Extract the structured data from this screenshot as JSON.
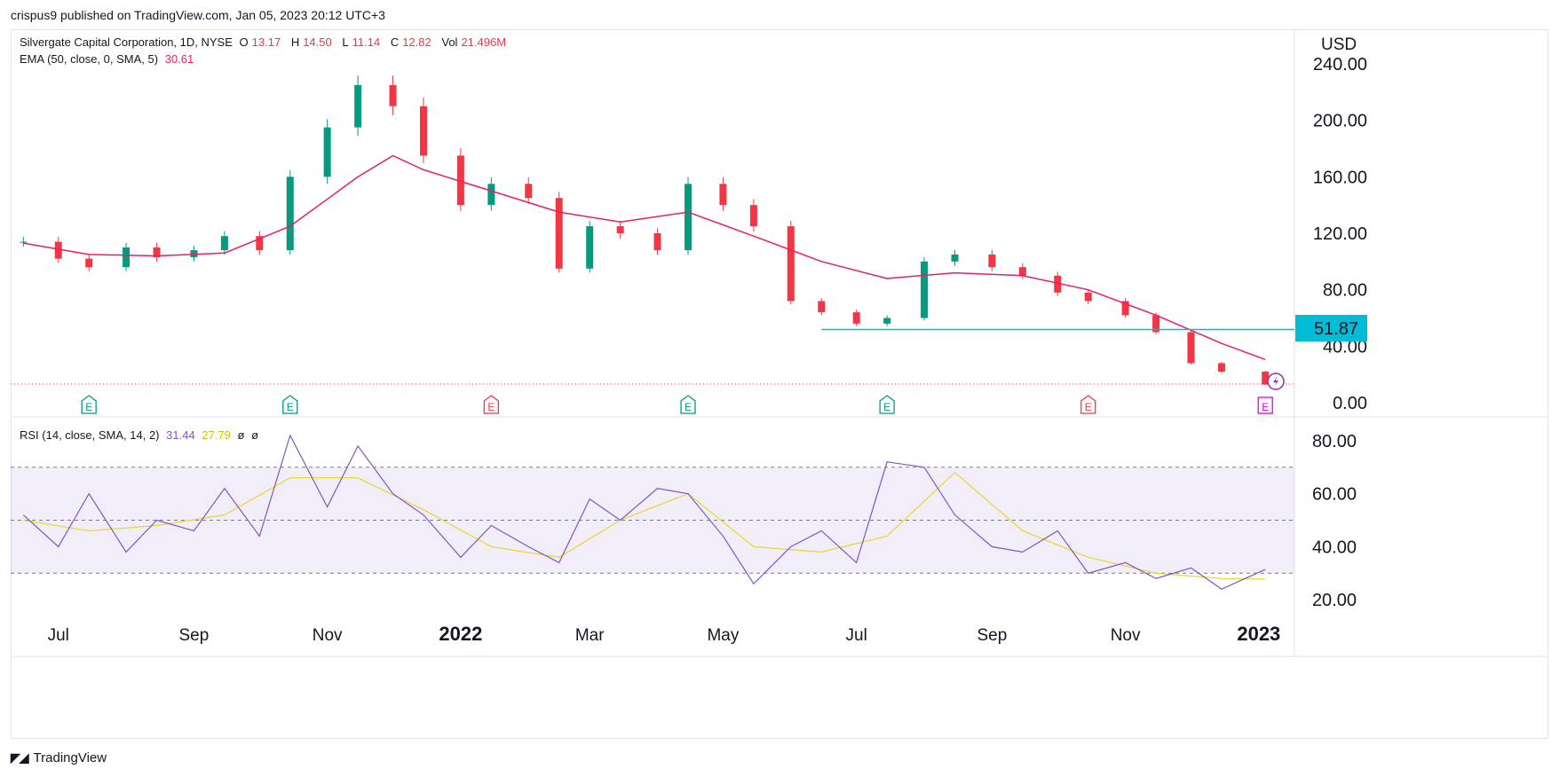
{
  "header": {
    "published": "crispus9 published on TradingView.com, Jan 05, 2023 20:12 UTC+3"
  },
  "legend": {
    "symbol": "Silvergate Capital Corporation, 1D, NYSE",
    "o_label": "O",
    "o": "13.17",
    "h_label": "H",
    "h": "14.50",
    "l_label": "L",
    "l": "11.14",
    "c_label": "C",
    "c": "12.82",
    "vol_label": "Vol",
    "vol": "21.496M",
    "ema_label": "EMA (50, close, 0, SMA, 5)",
    "ema": "30.61"
  },
  "rsi_legend": {
    "label": "RSI (14, close, SMA, 14, 2)",
    "rsi": "31.44",
    "rsi_ma": "27.79",
    "x1": "ø",
    "x2": "ø"
  },
  "currency": "USD",
  "price_label": "51.87",
  "footer": {
    "brand": "TradingView"
  },
  "colors": {
    "up": "#089981",
    "down": "#f23645",
    "ema": "#e91e63",
    "rsi": "#7e57c2",
    "rsi_ma": "#e6d82f",
    "level": "#00bcd4",
    "earnings_purple": "#d500f9"
  },
  "chart_data": [
    {
      "type": "candlestick",
      "series": [
        {
          "name": "Silvergate Capital Corporation",
          "type": "candlestick",
          "x": [
            "Jun 15 2021",
            "Jul 01 2021",
            "Jul 15 2021",
            "Aug 01 2021",
            "Aug 15 2021",
            "Sep 01 2021",
            "Sep 15 2021",
            "Oct 01 2021",
            "Oct 15 2021",
            "Nov 01 2021",
            "Nov 15 2021",
            "Dec 01 2021",
            "Dec 15 2021",
            "Jan 01 2022",
            "Jan 15 2022",
            "Feb 01 2022",
            "Feb 15 2022",
            "Mar 01 2022",
            "Mar 15 2022",
            "Apr 01 2022",
            "Apr 15 2022",
            "May 01 2022",
            "May 15 2022",
            "Jun 01 2022",
            "Jun 15 2022",
            "Jul 01 2022",
            "Jul 15 2022",
            "Aug 01 2022",
            "Aug 15 2022",
            "Sep 01 2022",
            "Sep 15 2022",
            "Oct 01 2022",
            "Oct 15 2022",
            "Nov 01 2022",
            "Nov 15 2022",
            "Dec 01 2022",
            "Dec 15 2022",
            "Jan 04 2023"
          ],
          "close": [
            114,
            102,
            96,
            110,
            103,
            108,
            118,
            108,
            160,
            195,
            225,
            210,
            175,
            140,
            155,
            145,
            95,
            125,
            120,
            108,
            155,
            140,
            125,
            72,
            64,
            56,
            60,
            100,
            105,
            96,
            90,
            78,
            72,
            62,
            50,
            28,
            22,
            12.82
          ]
        },
        {
          "name": "EMA (50, close, 0, SMA, 5)",
          "type": "line",
          "x": [
            "Jun 15 2021",
            "Jul 15 2021",
            "Aug 15 2021",
            "Sep 15 2021",
            "Oct 15 2021",
            "Nov 15 2021",
            "Dec 01 2021",
            "Dec 15 2021",
            "Jan 15 2022",
            "Feb 15 2022",
            "Mar 15 2022",
            "Apr 15 2022",
            "May 15 2022",
            "Jun 15 2022",
            "Jul 15 2022",
            "Aug 15 2022",
            "Sep 15 2022",
            "Oct 15 2022",
            "Nov 15 2022",
            "Dec 15 2022",
            "Jan 04 2023"
          ],
          "values": [
            113,
            105,
            104,
            106,
            125,
            160,
            175,
            165,
            150,
            135,
            128,
            135,
            118,
            100,
            88,
            92,
            90,
            80,
            62,
            42,
            30.61
          ]
        },
        {
          "name": "51.87",
          "type": "hline",
          "value": 51.87,
          "from": "Jun 15 2022",
          "to": "Jan 04 2023"
        }
      ],
      "earnings": [
        {
          "x": "Jul 15 2021",
          "kind": "beat",
          "label": "E"
        },
        {
          "x": "Oct 15 2021",
          "kind": "beat",
          "label": "E"
        },
        {
          "x": "Jan 15 2022",
          "kind": "miss",
          "label": "E"
        },
        {
          "x": "Apr 15 2022",
          "kind": "beat",
          "label": "E"
        },
        {
          "x": "Jul 15 2022",
          "kind": "beat",
          "label": "E"
        },
        {
          "x": "Oct 15 2022",
          "kind": "miss",
          "label": "E"
        },
        {
          "x": "Jan 04 2023",
          "kind": "upcoming",
          "label": "E"
        }
      ],
      "yticks": [
        "240.00",
        "200.00",
        "160.00",
        "120.00",
        "80.00",
        "40.00",
        "0.00"
      ],
      "ylim": [
        0,
        240
      ]
    },
    {
      "type": "line",
      "series": [
        {
          "name": "RSI (14, close, SMA, 14, 2)",
          "x": [
            "Jun 15 2021",
            "Jul 01 2021",
            "Jul 15 2021",
            "Aug 01 2021",
            "Aug 15 2021",
            "Sep 01 2021",
            "Sep 15 2021",
            "Oct 01 2021",
            "Oct 15 2021",
            "Nov 01 2021",
            "Nov 15 2021",
            "Dec 01 2021",
            "Dec 15 2021",
            "Jan 01 2022",
            "Jan 15 2022",
            "Feb 01 2022",
            "Feb 15 2022",
            "Mar 01 2022",
            "Mar 15 2022",
            "Apr 01 2022",
            "Apr 15 2022",
            "May 01 2022",
            "May 15 2022",
            "Jun 01 2022",
            "Jun 15 2022",
            "Jul 01 2022",
            "Jul 15 2022",
            "Aug 01 2022",
            "Aug 15 2022",
            "Sep 01 2022",
            "Sep 15 2022",
            "Oct 01 2022",
            "Oct 15 2022",
            "Nov 01 2022",
            "Nov 15 2022",
            "Dec 01 2022",
            "Dec 15 2022",
            "Jan 04 2023"
          ],
          "values": [
            52,
            40,
            60,
            38,
            50,
            46,
            62,
            44,
            82,
            55,
            78,
            60,
            52,
            36,
            48,
            40,
            34,
            58,
            50,
            62,
            60,
            44,
            26,
            40,
            46,
            34,
            72,
            70,
            52,
            40,
            38,
            46,
            30,
            34,
            28,
            32,
            24,
            31.44
          ]
        },
        {
          "name": "MA",
          "x": [
            "Jun 15 2021",
            "Jul 15 2021",
            "Aug 15 2021",
            "Sep 15 2021",
            "Oct 15 2021",
            "Nov 15 2021",
            "Dec 15 2021",
            "Jan 15 2022",
            "Feb 15 2022",
            "Mar 15 2022",
            "Apr 15 2022",
            "May 15 2022",
            "Jun 15 2022",
            "Jul 15 2022",
            "Aug 15 2022",
            "Sep 15 2022",
            "Oct 15 2022",
            "Nov 15 2022",
            "Dec 15 2022",
            "Jan 04 2023"
          ],
          "values": [
            50,
            46,
            48,
            52,
            66,
            66,
            54,
            40,
            36,
            50,
            60,
            40,
            38,
            44,
            68,
            46,
            36,
            30,
            28,
            27.79
          ]
        }
      ],
      "bands": {
        "upper": 70,
        "middle": 50,
        "lower": 30
      },
      "yticks": [
        "80.00",
        "60.00",
        "40.00",
        "20.00"
      ],
      "ylim": [
        10,
        90
      ],
      "xticks": [
        "Jul",
        "Sep",
        "Nov",
        "2022",
        "Mar",
        "May",
        "Jul",
        "Sep",
        "Nov",
        "2023"
      ],
      "xticks_bold": [
        "2022",
        "2023"
      ]
    }
  ]
}
